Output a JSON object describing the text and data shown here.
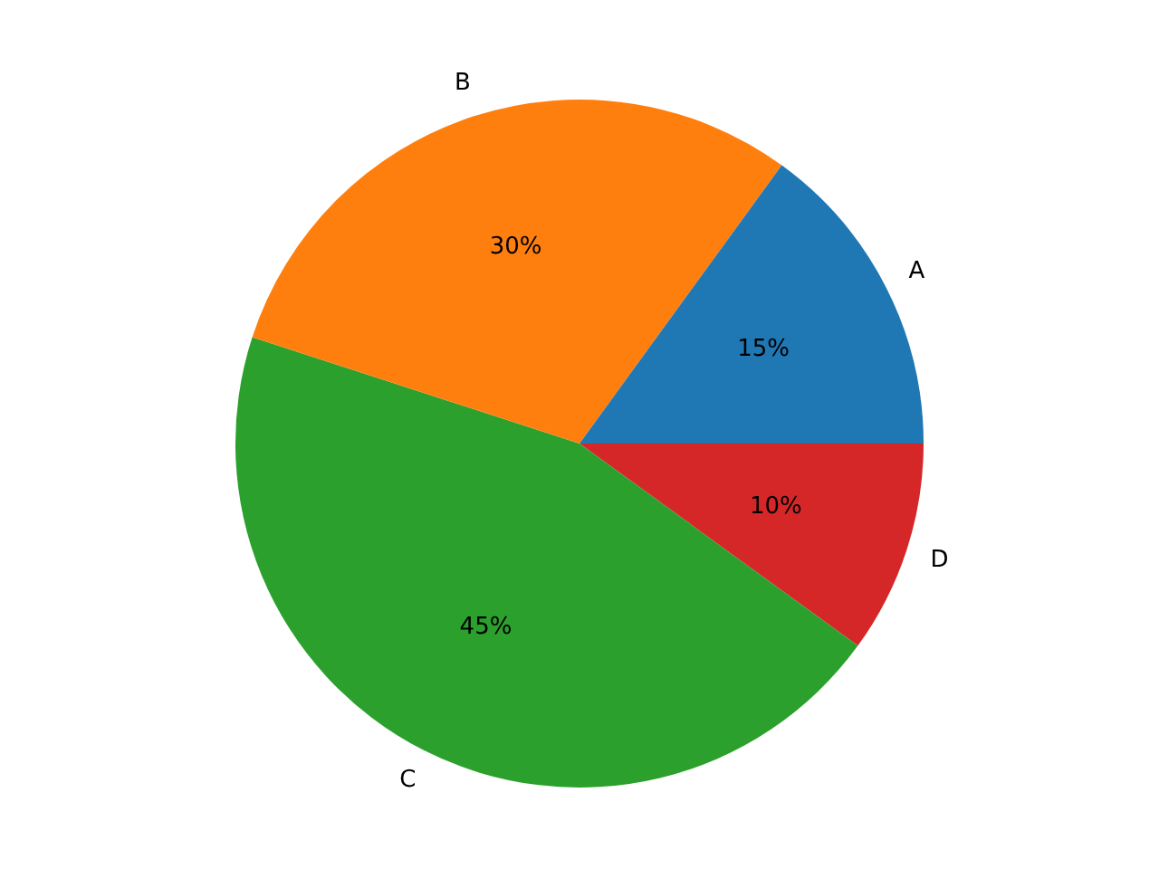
{
  "chart_data": {
    "type": "pie",
    "categories": [
      "A",
      "B",
      "C",
      "D"
    ],
    "values": [
      15,
      30,
      45,
      10
    ],
    "value_labels": [
      "15%",
      "30%",
      "45%",
      "10%"
    ],
    "colors": [
      "#1f77b4",
      "#ff7f0e",
      "#2ca02c",
      "#d62728"
    ],
    "legend": false
  }
}
